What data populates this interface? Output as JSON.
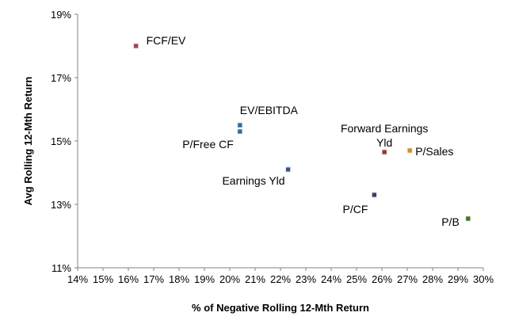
{
  "chart_data": {
    "type": "scatter",
    "title": "",
    "xlabel": "% of Negative Rolling 12-Mth Return",
    "ylabel": "Avg Rolling 12-Mth Return",
    "xlim": [
      14,
      30
    ],
    "ylim": [
      11,
      19
    ],
    "x_ticks": [
      "14%",
      "15%",
      "16%",
      "17%",
      "18%",
      "19%",
      "20%",
      "21%",
      "22%",
      "23%",
      "24%",
      "25%",
      "26%",
      "27%",
      "28%",
      "29%",
      "30%"
    ],
    "y_ticks": [
      "11%",
      "13%",
      "15%",
      "17%",
      "19%"
    ],
    "grid": false,
    "legend": "none",
    "points": [
      {
        "label": "FCF/EV",
        "x": 16.3,
        "y": 18.0,
        "color": "#a0455a"
      },
      {
        "label": "EV/EBITDA",
        "x": 20.4,
        "y": 15.5,
        "color": "#2f6aa8"
      },
      {
        "label": "P/Free CF",
        "x": 20.4,
        "y": 15.3,
        "color": "#2f6aa8"
      },
      {
        "label": "Earnings Yld",
        "x": 22.3,
        "y": 14.1,
        "color": "#2a5a9a"
      },
      {
        "label": "Forward Earnings Yld",
        "x": 26.1,
        "y": 14.65,
        "color": "#8a3a40"
      },
      {
        "label": "P/Sales",
        "x": 27.1,
        "y": 14.7,
        "color": "#c8902a"
      },
      {
        "label": "P/CF",
        "x": 25.7,
        "y": 13.3,
        "color": "#3a3a8a"
      },
      {
        "label": "P/B",
        "x": 29.4,
        "y": 12.55,
        "color": "#2f7a2f"
      }
    ]
  }
}
